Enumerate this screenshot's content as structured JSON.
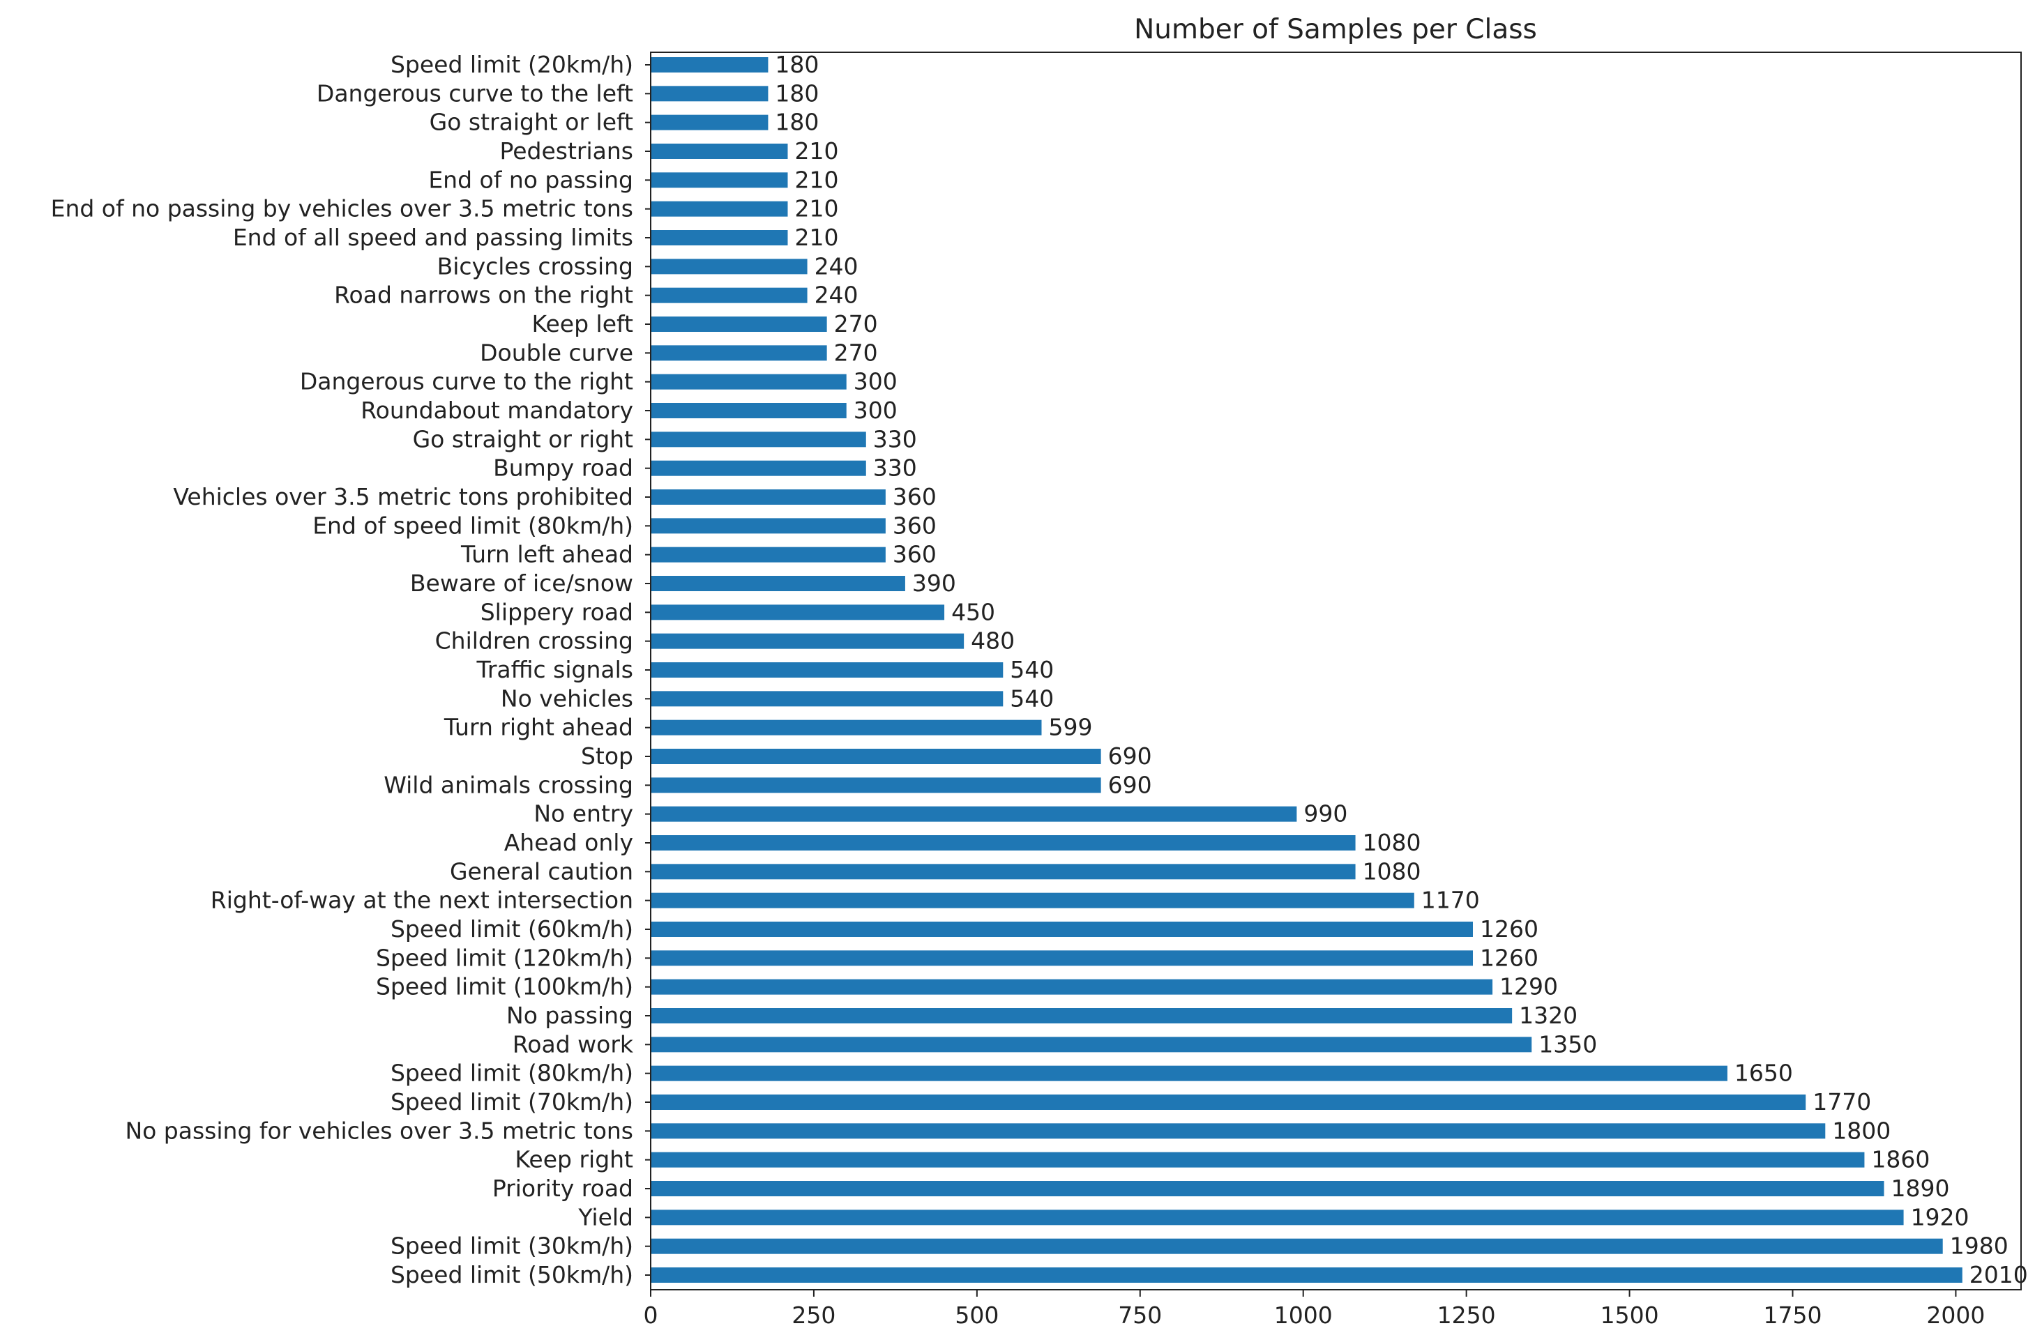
{
  "chart_data": {
    "type": "bar",
    "orientation": "horizontal",
    "title": "Number of Samples per Class",
    "xlabel": "",
    "ylabel": "",
    "xlim": [
      0,
      2100
    ],
    "x_ticks": [
      0,
      250,
      500,
      750,
      1000,
      1250,
      1500,
      1750,
      2000
    ],
    "bar_color": "#1f77b4",
    "grid": false,
    "show_value_labels": true,
    "categories": [
      "Speed limit (20km/h)",
      "Dangerous curve to the left",
      "Go straight or left",
      "Pedestrians",
      "End of no passing",
      "End of no passing by vehicles over 3.5 metric tons",
      "End of all speed and passing limits",
      "Bicycles crossing",
      "Road narrows on the right",
      "Keep left",
      "Double curve",
      "Dangerous curve to the right",
      "Roundabout mandatory",
      "Go straight or right",
      "Bumpy road",
      "Vehicles over 3.5 metric tons prohibited",
      "End of speed limit (80km/h)",
      "Turn left ahead",
      "Beware of ice/snow",
      "Slippery road",
      "Children crossing",
      "Traffic signals",
      "No vehicles",
      "Turn right ahead",
      "Stop",
      "Wild animals crossing",
      "No entry",
      "Ahead only",
      "General caution",
      "Right-of-way at the next intersection",
      "Speed limit (60km/h)",
      "Speed limit (120km/h)",
      "Speed limit (100km/h)",
      "No passing",
      "Road work",
      "Speed limit (80km/h)",
      "Speed limit (70km/h)",
      "No passing for vehicles over 3.5 metric tons",
      "Keep right",
      "Priority road",
      "Yield",
      "Speed limit (30km/h)",
      "Speed limit (50km/h)"
    ],
    "values": [
      180,
      180,
      180,
      210,
      210,
      210,
      210,
      240,
      240,
      270,
      270,
      300,
      300,
      330,
      330,
      360,
      360,
      360,
      390,
      450,
      480,
      540,
      540,
      599,
      690,
      690,
      990,
      1080,
      1080,
      1170,
      1260,
      1260,
      1290,
      1320,
      1350,
      1650,
      1770,
      1800,
      1860,
      1890,
      1920,
      1980,
      2010
    ]
  }
}
